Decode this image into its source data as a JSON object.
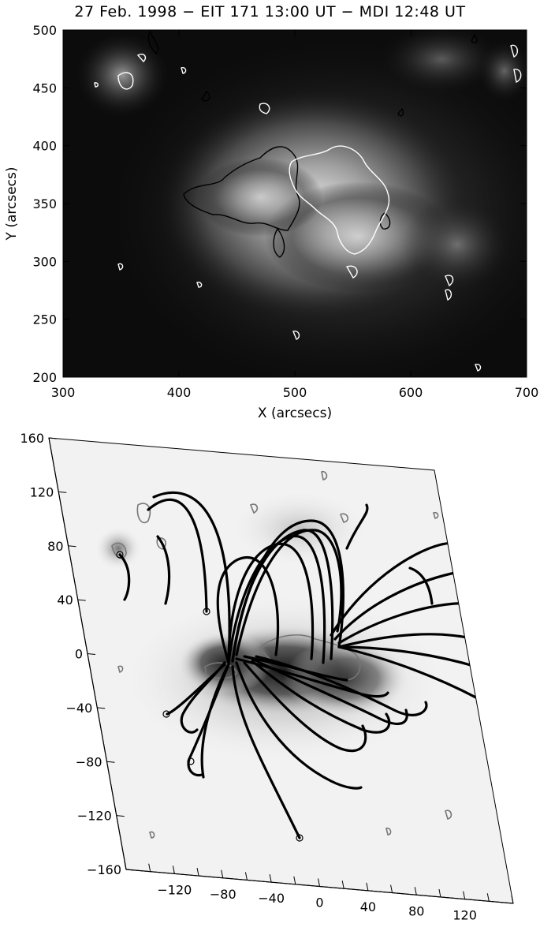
{
  "top_panel": {
    "title": "27 Feb. 1998 − EIT 171 13:00 UT − MDI 12:48 UT",
    "xlabel": "X (arcsecs)",
    "ylabel": "Y (arcsecs)",
    "colors": {
      "image_dark": "#0a0a0a",
      "image_bright": "#e8e8e8",
      "positive_contour": "#ffffff",
      "negative_contour": "#000000"
    }
  },
  "bottom_panel": {
    "colors": {
      "background": "#f2f2f2",
      "active_region": "#3a3a3a",
      "field_lines": "#000000",
      "contours": "#777777"
    }
  },
  "chart_data": [
    {
      "type": "heatmap",
      "title": "27 Feb. 1998 − EIT 171 13:00 UT − MDI 12:48 UT",
      "xlabel": "X (arcsecs)",
      "ylabel": "Y (arcsecs)",
      "xlim": [
        300,
        700
      ],
      "ylim": [
        200,
        500
      ],
      "x_ticks": [
        "300",
        "400",
        "500",
        "600",
        "700"
      ],
      "y_ticks": [
        "200",
        "250",
        "300",
        "350",
        "400",
        "450",
        "500"
      ],
      "grid": false
    },
    {
      "type": "scatter",
      "title": "",
      "xlabel": "",
      "ylabel": "",
      "xlim": [
        -160,
        160
      ],
      "ylim": [
        -160,
        160
      ],
      "x_ticks": [
        "−120",
        "−80",
        "−40",
        "0",
        "40",
        "80",
        "120"
      ],
      "y_ticks": [
        "160",
        "120",
        "80",
        "40",
        "0",
        "−40",
        "−80",
        "−120",
        "−160"
      ],
      "grid": false
    }
  ]
}
